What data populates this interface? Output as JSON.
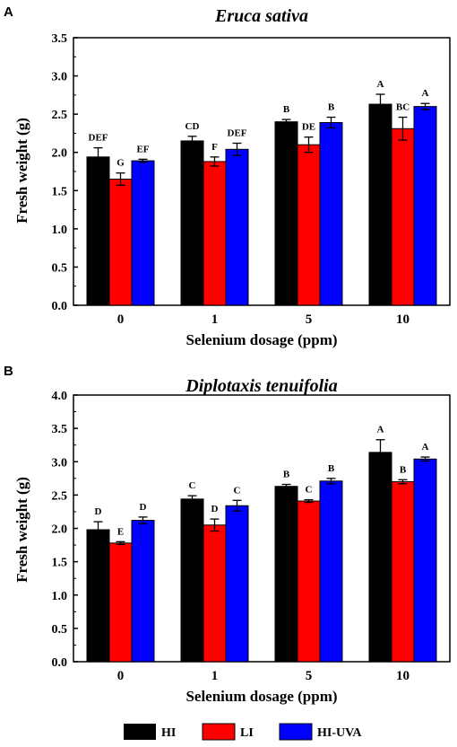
{
  "chart_data": [
    {
      "panel": "A",
      "type": "bar",
      "title": "Eruca sativa",
      "xlabel": "Selenium dosage (ppm)",
      "ylabel": "Fresh weight (g)",
      "categories": [
        "0",
        "1",
        "5",
        "10"
      ],
      "ylim": [
        0,
        3.5
      ],
      "yticks": [
        "0.0",
        "0.5",
        "1.0",
        "1.5",
        "2.0",
        "2.5",
        "3.0",
        "3.5"
      ],
      "series": [
        {
          "name": "HI",
          "color": "#000000",
          "values": [
            1.94,
            2.15,
            2.4,
            2.63
          ],
          "errors": [
            0.12,
            0.06,
            0.03,
            0.13
          ],
          "letters": [
            "DEF",
            "CD",
            "B",
            "A"
          ]
        },
        {
          "name": "LI",
          "color": "#ff0000",
          "values": [
            1.65,
            1.88,
            2.1,
            2.31
          ],
          "errors": [
            0.08,
            0.06,
            0.1,
            0.15
          ],
          "letters": [
            "G",
            "F",
            "DE",
            "BC"
          ]
        },
        {
          "name": "HI-UVA",
          "color": "#0000ff",
          "values": [
            1.89,
            2.04,
            2.39,
            2.6
          ],
          "errors": [
            0.02,
            0.08,
            0.07,
            0.04
          ],
          "letters": [
            "EF",
            "DEF",
            "B",
            "A"
          ]
        }
      ]
    },
    {
      "panel": "B",
      "type": "bar",
      "title": "Diplotaxis tenuifolia",
      "xlabel": "Selenium dosage (ppm)",
      "ylabel": "Fresh weight (g)",
      "categories": [
        "0",
        "1",
        "5",
        "10"
      ],
      "ylim": [
        0,
        4.0
      ],
      "yticks": [
        "0.0",
        "0.5",
        "1.0",
        "1.5",
        "2.0",
        "2.5",
        "3.0",
        "3.5",
        "4.0"
      ],
      "series": [
        {
          "name": "HI",
          "color": "#000000",
          "values": [
            1.98,
            2.44,
            2.63,
            3.14
          ],
          "errors": [
            0.12,
            0.05,
            0.03,
            0.19
          ],
          "letters": [
            "D",
            "C",
            "B",
            "A"
          ]
        },
        {
          "name": "LI",
          "color": "#ff0000",
          "values": [
            1.78,
            2.05,
            2.41,
            2.7
          ],
          "errors": [
            0.02,
            0.09,
            0.02,
            0.03
          ],
          "letters": [
            "E",
            "D",
            "C",
            "B"
          ]
        },
        {
          "name": "HI-UVA",
          "color": "#0000ff",
          "values": [
            2.12,
            2.34,
            2.71,
            3.04
          ],
          "errors": [
            0.05,
            0.08,
            0.04,
            0.03
          ],
          "letters": [
            "D",
            "C",
            "B",
            "A"
          ]
        }
      ]
    }
  ],
  "legend": {
    "items": [
      {
        "label": "HI",
        "color": "#000000"
      },
      {
        "label": "LI",
        "color": "#ff0000"
      },
      {
        "label": "HI-UVA",
        "color": "#0000ff"
      }
    ]
  }
}
